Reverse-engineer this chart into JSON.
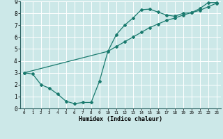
{
  "xlabel": "Humidex (Indice chaleur)",
  "xlim": [
    -0.5,
    23.5
  ],
  "ylim": [
    0,
    9
  ],
  "xticks": [
    0,
    1,
    2,
    3,
    4,
    5,
    6,
    7,
    8,
    9,
    10,
    11,
    12,
    13,
    14,
    15,
    16,
    17,
    18,
    19,
    20,
    21,
    22,
    23
  ],
  "yticks": [
    0,
    1,
    2,
    3,
    4,
    5,
    6,
    7,
    8,
    9
  ],
  "bg_color": "#cce8e8",
  "line_color": "#1a7a6e",
  "grid_color": "#ffffff",
  "curve1_x": [
    0,
    1,
    2,
    3,
    4,
    5,
    6,
    7,
    8,
    9,
    10,
    11,
    12,
    13,
    14,
    15,
    16,
    17,
    18,
    19,
    20,
    21,
    22,
    23
  ],
  "curve1_y": [
    3.0,
    2.9,
    2.0,
    1.7,
    1.2,
    0.6,
    0.4,
    0.5,
    0.5,
    2.3,
    4.8,
    6.2,
    7.0,
    7.6,
    8.3,
    8.35,
    8.1,
    7.85,
    7.75,
    8.0,
    8.05,
    8.4,
    8.9,
    8.9
  ],
  "curve2_x": [
    0,
    10,
    11,
    12,
    13,
    14,
    15,
    16,
    17,
    18,
    19,
    20,
    21,
    22,
    23
  ],
  "curve2_y": [
    3.0,
    4.8,
    5.2,
    5.6,
    6.0,
    6.4,
    6.8,
    7.1,
    7.4,
    7.6,
    7.85,
    8.05,
    8.25,
    8.55,
    8.85
  ]
}
